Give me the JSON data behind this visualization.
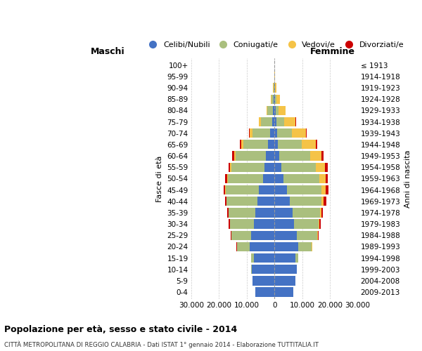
{
  "age_groups": [
    "0-4",
    "5-9",
    "10-14",
    "15-19",
    "20-24",
    "25-29",
    "30-34",
    "35-39",
    "40-44",
    "45-49",
    "50-54",
    "55-59",
    "60-64",
    "65-69",
    "70-74",
    "75-79",
    "80-84",
    "85-89",
    "90-94",
    "95-99",
    "100+"
  ],
  "birth_years": [
    "2009-2013",
    "2004-2008",
    "1999-2003",
    "1994-1998",
    "1989-1993",
    "1984-1988",
    "1979-1983",
    "1974-1978",
    "1969-1973",
    "1964-1968",
    "1959-1963",
    "1954-1958",
    "1949-1953",
    "1944-1948",
    "1939-1943",
    "1934-1938",
    "1929-1933",
    "1924-1928",
    "1919-1923",
    "1914-1918",
    "≤ 1913"
  ],
  "males": {
    "celibi": [
      7000,
      7800,
      8200,
      7500,
      9000,
      8500,
      7500,
      7000,
      6200,
      5500,
      4200,
      3500,
      3000,
      2200,
      1500,
      900,
      500,
      300,
      150,
      50,
      20
    ],
    "coniugati": [
      10,
      30,
      100,
      800,
      4500,
      7000,
      8500,
      9500,
      11000,
      12000,
      12500,
      12000,
      11000,
      9000,
      6500,
      4000,
      2000,
      800,
      200,
      30,
      10
    ],
    "vedovi": [
      1,
      2,
      5,
      10,
      20,
      30,
      50,
      80,
      100,
      200,
      300,
      400,
      600,
      800,
      900,
      700,
      400,
      200,
      80,
      20,
      5
    ],
    "divorziati": [
      2,
      5,
      10,
      30,
      100,
      200,
      350,
      500,
      600,
      700,
      700,
      700,
      600,
      400,
      200,
      100,
      50,
      20,
      10,
      5,
      1
    ]
  },
  "females": {
    "nubili": [
      6800,
      7500,
      8000,
      7500,
      8500,
      8000,
      7000,
      6500,
      5500,
      4500,
      3200,
      2500,
      1800,
      1300,
      900,
      600,
      350,
      200,
      100,
      50,
      20
    ],
    "coniugate": [
      10,
      40,
      150,
      1000,
      5000,
      7500,
      9000,
      10000,
      11500,
      12500,
      13000,
      12500,
      11000,
      8500,
      5500,
      3000,
      1200,
      500,
      120,
      20,
      5
    ],
    "vedove": [
      1,
      3,
      8,
      20,
      50,
      100,
      200,
      400,
      800,
      1500,
      2200,
      3200,
      4200,
      5000,
      5000,
      4000,
      2500,
      1200,
      400,
      100,
      20
    ],
    "divorziate": [
      2,
      5,
      10,
      40,
      120,
      250,
      400,
      600,
      800,
      900,
      900,
      900,
      800,
      500,
      250,
      120,
      60,
      30,
      15,
      5,
      1
    ]
  },
  "colors": {
    "celibi": "#4472C4",
    "coniugati": "#AABF7E",
    "vedovi": "#F5C347",
    "divorziati": "#CC0000"
  },
  "title": "Popolazione per età, sesso e stato civile - 2014",
  "subtitle": "CITTÀ METROPOLITANA DI REGGIO CALABRIA - Dati ISTAT 1° gennaio 2014 - Elaborazione TUTTITALIA.IT",
  "ylabel": "Fasce di età",
  "ylabel_right": "Anni di nascita",
  "xlabel_left": "Maschi",
  "xlabel_right": "Femmine",
  "xlim": 30000,
  "background_color": "#ffffff",
  "grid_color": "#cccccc"
}
